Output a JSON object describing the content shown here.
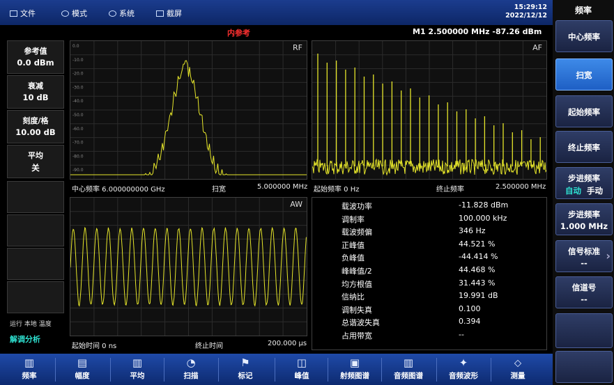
{
  "menu": [
    {
      "label": "文件",
      "icon": "file-icon"
    },
    {
      "label": "模式",
      "icon": "mode-icon"
    },
    {
      "label": "系统",
      "icon": "system-icon"
    },
    {
      "label": "截屏",
      "icon": "screenshot-icon"
    }
  ],
  "clock": {
    "time": "15:29:12",
    "date": "2022/12/12"
  },
  "ref_source": "内参考",
  "marker_readout": "M1  2.500000 MHz    -87.26 dBm",
  "left": {
    "ref_title": "参考值",
    "ref_value": "0.0 dBm",
    "atten_title": "衰减",
    "atten_value": "10 dB",
    "scale_title": "刻度/格",
    "scale_value": "10.00 dB",
    "avg_title": "平均",
    "avg_value": "关",
    "status_mode": "运行 本地 温度",
    "function": "解调分析"
  },
  "rf": {
    "label": "RF",
    "y_ticks": [
      "0.0",
      "-10.0",
      "-20.0",
      "-30.0",
      "-40.0",
      "-50.0",
      "-60.0",
      "-70.0",
      "-80.0",
      "-90.0"
    ],
    "center": "中心频率  6.000000000 GHz",
    "span_label": "扫宽",
    "span_value": "5.000000 MHz"
  },
  "af": {
    "label": "AF",
    "start": "起始频率   0 Hz",
    "stop_label": "终止频率",
    "stop_value": "2.500000 MHz"
  },
  "aw": {
    "label": "AW",
    "start": "起始时间   0 ns",
    "stop_label": "终止时间",
    "stop_value": "200.000 μs"
  },
  "measurements": [
    {
      "name": "载波功率",
      "value": "-11.828 dBm"
    },
    {
      "name": "调制率",
      "value": "100.000 kHz"
    },
    {
      "name": "载波频偏",
      "value": "346 Hz"
    },
    {
      "name": "正峰值",
      "value": "44.521 %"
    },
    {
      "name": "负峰值",
      "value": "-44.414 %"
    },
    {
      "name": "峰峰值/2",
      "value": "44.468 %"
    },
    {
      "name": "均方根值",
      "value": "31.443 %"
    },
    {
      "name": "信纳比",
      "value": "19.991 dB"
    },
    {
      "name": "调制失真",
      "value": "0.100"
    },
    {
      "name": "总谐波失真",
      "value": "0.394"
    },
    {
      "name": "占用带宽",
      "value": "--"
    }
  ],
  "right": {
    "title": "频率",
    "center_freq": "中心频率",
    "span": "扫宽",
    "start_freq": "起始频率",
    "stop_freq": "终止频率",
    "step_title": "步进频率",
    "step_auto": "自动",
    "step_manual": "手动",
    "step_value_title": "步进频率",
    "step_value": "1.000 MHz",
    "signal_std_title": "信号标准",
    "signal_std_value": "--",
    "channel_title": "信道号",
    "channel_value": "--"
  },
  "bottom": [
    {
      "label": "频率",
      "icon": "frequency-icon"
    },
    {
      "label": "幅度",
      "icon": "amplitude-icon"
    },
    {
      "label": "平均",
      "icon": "average-icon"
    },
    {
      "label": "扫描",
      "icon": "sweep-icon"
    },
    {
      "label": "标记",
      "icon": "marker-icon"
    },
    {
      "label": "峰值",
      "icon": "peak-icon"
    },
    {
      "label": "射频图谱",
      "icon": "rf-spectrum-icon"
    },
    {
      "label": "音频图谱",
      "icon": "audio-spectrum-icon"
    },
    {
      "label": "音频波形",
      "icon": "audio-waveform-icon"
    },
    {
      "label": "测量",
      "icon": "measure-icon"
    }
  ],
  "colors": {
    "trace": "#e6e62a",
    "accent": "#2ee0d0",
    "ref": "#ff3030",
    "topbar": "#1b3c8e"
  }
}
